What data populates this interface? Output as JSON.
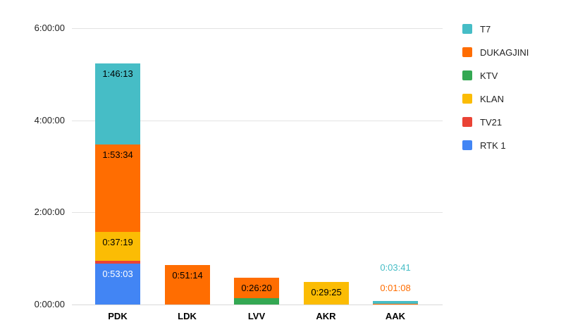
{
  "chart_data": {
    "type": "bar",
    "stacked": true,
    "orientation": "vertical",
    "value_format": "h:mm:ss duration",
    "grid": "horizontal lines on",
    "categories": [
      "PDK",
      "LDK",
      "LVV",
      "AKR",
      "AAK"
    ],
    "series": [
      {
        "name": "RTK 1",
        "color": "#4285f4",
        "seconds": [
          3183,
          0,
          0,
          0,
          0
        ],
        "labels": [
          "0:53:03",
          "",
          "",
          "",
          ""
        ],
        "label_text_color": "#ffffff",
        "label_outside": [
          false,
          false,
          false,
          false,
          false
        ]
      },
      {
        "name": "TV21",
        "color": "#ea4335",
        "seconds": [
          248,
          0,
          0,
          0,
          0
        ],
        "labels": [
          "",
          "",
          "",
          "",
          ""
        ],
        "label_text_color": "#000000",
        "label_outside": [
          false,
          false,
          false,
          false,
          false
        ]
      },
      {
        "name": "KLAN",
        "color": "#fbbc04",
        "seconds": [
          2239,
          0,
          0,
          1765,
          0
        ],
        "labels": [
          "0:37:19",
          "",
          "",
          "0:29:25",
          ""
        ],
        "label_text_color": "#000000",
        "label_outside": [
          false,
          false,
          false,
          false,
          false
        ]
      },
      {
        "name": "KTV",
        "color": "#34a853",
        "seconds": [
          0,
          0,
          496,
          0,
          0
        ],
        "labels": [
          "",
          "",
          "",
          "",
          ""
        ],
        "label_text_color": "#000000",
        "label_outside": [
          false,
          false,
          false,
          false,
          false
        ]
      },
      {
        "name": "DUKAGJINI",
        "color": "#ff6d01",
        "seconds": [
          6814,
          3074,
          1580,
          0,
          68
        ],
        "labels": [
          "1:53:34",
          "0:51:14",
          "0:26:20",
          "",
          "0:01:08"
        ],
        "label_text_color": "#000000",
        "label_outside": [
          false,
          false,
          false,
          false,
          true
        ]
      },
      {
        "name": "T7",
        "color": "#46bdc6",
        "seconds": [
          6373,
          0,
          0,
          0,
          221
        ],
        "labels": [
          "1:46:13",
          "",
          "",
          "",
          "0:03:41"
        ],
        "label_text_color": "#000000",
        "label_outside": [
          false,
          false,
          false,
          false,
          true
        ]
      }
    ],
    "y_axis": {
      "min_seconds": 0,
      "max_seconds": 21600,
      "ticks": [
        {
          "label": "0:00:00",
          "seconds": 0
        },
        {
          "label": "2:00:00",
          "seconds": 7200
        },
        {
          "label": "4:00:00",
          "seconds": 14400
        },
        {
          "label": "6:00:00",
          "seconds": 21600
        }
      ]
    },
    "legend": {
      "position": "right",
      "items": [
        {
          "label": "T7",
          "color": "#46bdc6"
        },
        {
          "label": "DUKAGJINI",
          "color": "#ff6d01"
        },
        {
          "label": "KTV",
          "color": "#34a853"
        },
        {
          "label": "KLAN",
          "color": "#fbbc04"
        },
        {
          "label": "TV21",
          "color": "#ea4335"
        },
        {
          "label": "RTK 1",
          "color": "#4285f4"
        }
      ]
    }
  },
  "colors": {
    "background": "#ffffff",
    "gridline": "#e3e3e3",
    "baseline": "#d9d9d9",
    "tick_label": "#222222",
    "category_label": "#000000"
  }
}
